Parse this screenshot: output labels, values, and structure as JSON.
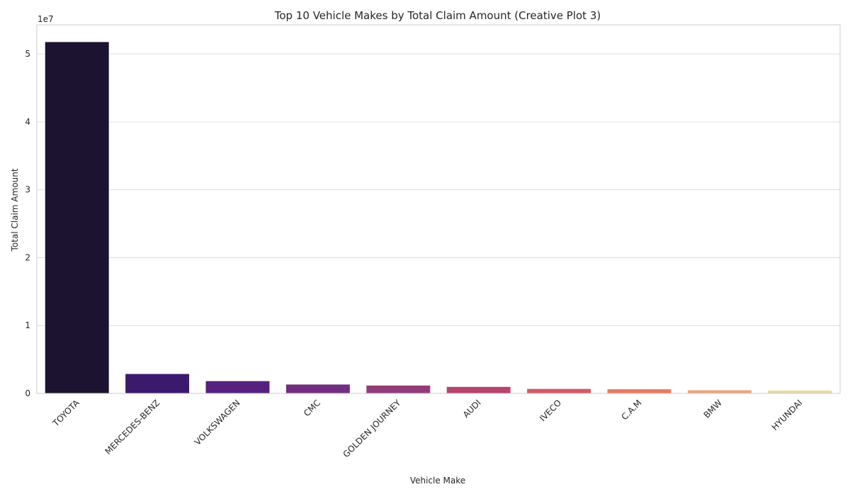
{
  "chart_data": {
    "type": "bar",
    "title": "Top 10 Vehicle Makes by Total Claim Amount (Creative Plot 3)",
    "xlabel": "Vehicle Make",
    "ylabel": "Total Claim Amount",
    "y_offset_label": "1e7",
    "y_scale_factor": 10000000,
    "ylim": [
      0,
      54300000
    ],
    "yticks": [
      0,
      10000000,
      20000000,
      30000000,
      40000000,
      50000000
    ],
    "ytick_labels": [
      "0",
      "1",
      "2",
      "3",
      "4",
      "5"
    ],
    "grid": true,
    "categories": [
      "TOYOTA",
      "MERCEDES-BENZ",
      "VOLKSWAGEN",
      "CMC",
      "GOLDEN JOURNEY",
      "AUDI",
      "IVECO",
      "C.A.M",
      "BMW",
      "HYUNDAI"
    ],
    "values": [
      51800000,
      2900000,
      1850000,
      1350000,
      1200000,
      1000000,
      700000,
      650000,
      500000,
      450000
    ],
    "colors": [
      "#1b1330",
      "#3b1a6e",
      "#56207e",
      "#722e7f",
      "#923d7a",
      "#b5446e",
      "#d55864",
      "#e97a5e",
      "#eea37a",
      "#ecd6a0"
    ]
  }
}
